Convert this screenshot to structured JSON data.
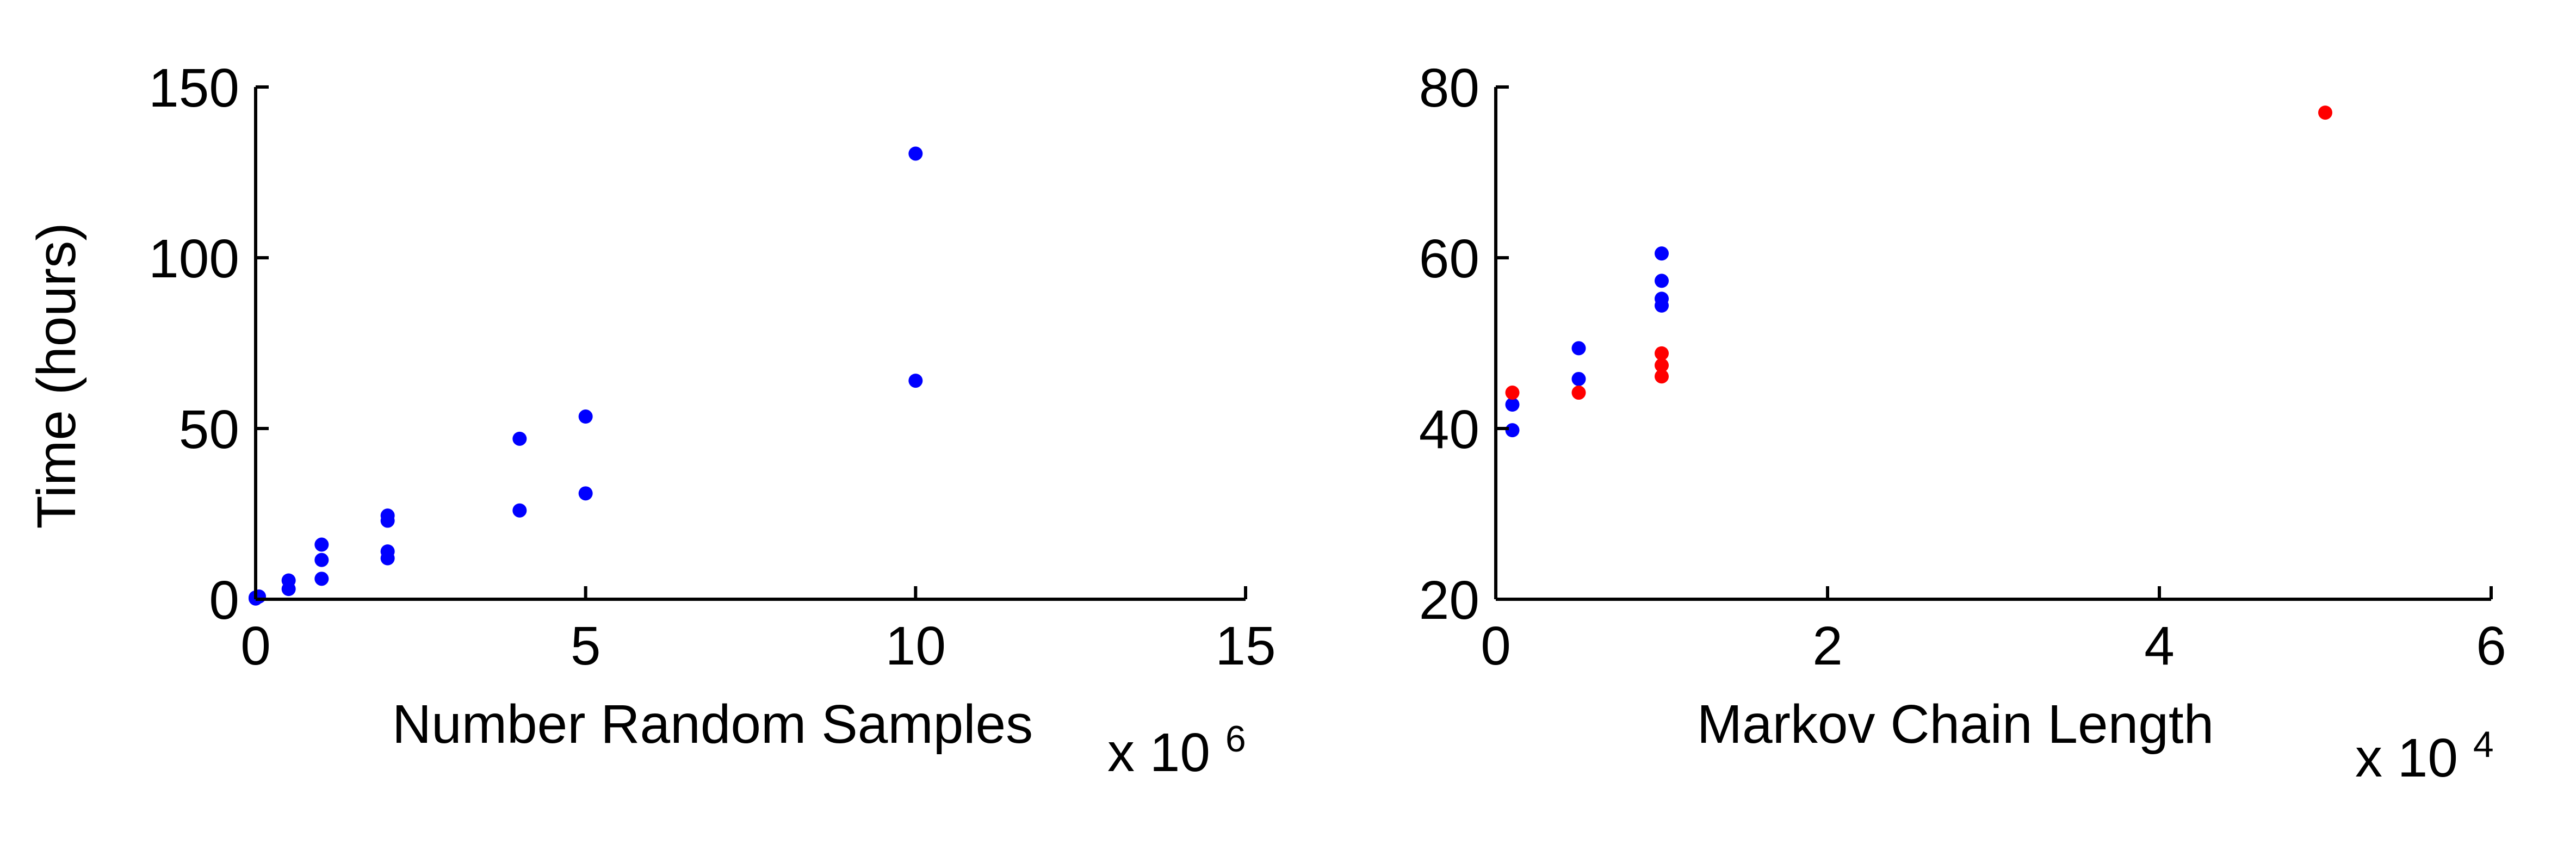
{
  "chart_data": [
    {
      "type": "scatter",
      "title": "",
      "xlabel": "Number Random Samples",
      "ylabel": "Time (hours)",
      "x_exponent": {
        "base": "x 10",
        "power": "6"
      },
      "xlim": [
        0,
        15
      ],
      "ylim": [
        0,
        150
      ],
      "xticks": [
        0,
        5,
        10,
        15
      ],
      "yticks": [
        0,
        50,
        100,
        150
      ],
      "grid": false,
      "series": [
        {
          "color": "#0000ff",
          "points": [
            [
              0,
              0.2
            ],
            [
              0,
              0.5
            ],
            [
              0.05,
              0.8
            ],
            [
              0.5,
              3
            ],
            [
              0.5,
              5.5
            ],
            [
              1,
              6
            ],
            [
              1,
              11.5
            ],
            [
              1,
              16
            ],
            [
              2,
              12
            ],
            [
              2,
              14
            ],
            [
              2,
              23
            ],
            [
              2,
              24.5
            ],
            [
              4,
              26
            ],
            [
              4,
              47
            ],
            [
              5,
              31
            ],
            [
              5,
              53.5
            ],
            [
              10,
              64
            ],
            [
              10,
              130.5
            ]
          ]
        }
      ]
    },
    {
      "type": "scatter",
      "title": "",
      "xlabel": "Markov Chain Length",
      "ylabel": "",
      "x_exponent": {
        "base": "x 10",
        "power": "4"
      },
      "xlim": [
        0,
        6
      ],
      "ylim": [
        20,
        80
      ],
      "xticks": [
        0,
        2,
        4,
        6
      ],
      "yticks": [
        20,
        40,
        60,
        80
      ],
      "grid": false,
      "series": [
        {
          "color": "#0000ff",
          "points": [
            [
              0.1,
              39.8
            ],
            [
              0.1,
              42.8
            ],
            [
              0.5,
              45.8
            ],
            [
              0.5,
              49.4
            ],
            [
              1,
              54.4
            ],
            [
              1,
              55.2
            ],
            [
              1,
              57.3
            ],
            [
              1,
              60.5
            ]
          ]
        },
        {
          "color": "#ff0000",
          "points": [
            [
              0.1,
              44.2
            ],
            [
              0.5,
              44.2
            ],
            [
              1,
              46.1
            ],
            [
              1,
              47.4
            ],
            [
              1,
              48.8
            ],
            [
              5,
              77
            ]
          ]
        }
      ]
    }
  ]
}
